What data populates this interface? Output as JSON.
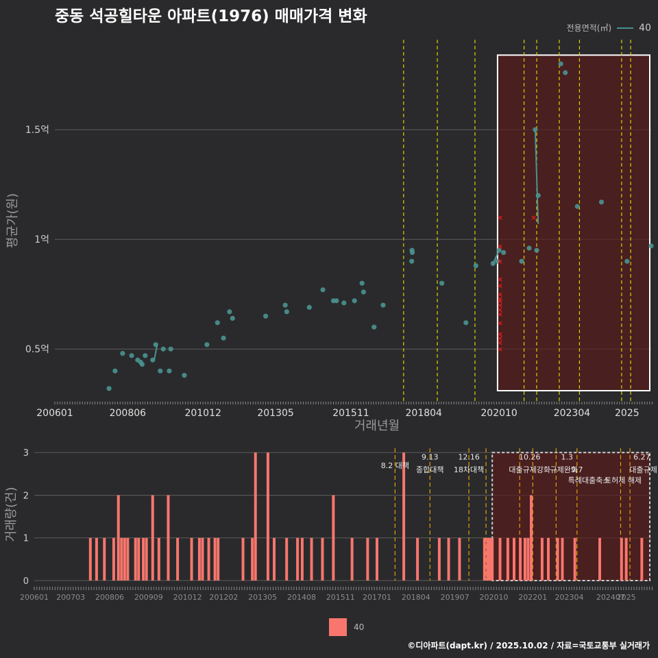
{
  "title": "중동 석공힐타운 아파트(1976) 매매가격 변화",
  "legend": {
    "title": "전용면적(㎡)",
    "entry": "40"
  },
  "credit": "©디아파트(dapt.kr) / 2025.10.02 / 자료=국토교통부 실거래가",
  "colors": {
    "background": "#2a2a2c",
    "price_point": "#4a9390",
    "cancel_mark": "#e01e1e",
    "volume_bar": "#f8766d",
    "policy_line": "#e0d000",
    "highlight": "#5a1a1a"
  },
  "chart_data": [
    {
      "type": "scatter",
      "name": "price",
      "xlabel": "거래년월",
      "ylabel": "평균가(원)",
      "x_tick_labels": [
        "200601",
        "200806",
        "201012",
        "201305",
        "201511",
        "201804",
        "202010",
        "202304",
        "2025"
      ],
      "x_ticks": [
        2006.0,
        2008.42,
        2010.92,
        2013.33,
        2015.83,
        2018.25,
        2020.75,
        2023.17,
        2025.0
      ],
      "xlim": [
        2006.0,
        2025.8
      ],
      "y_tick_labels": [
        "0.5억",
        "1억",
        "1.5억"
      ],
      "y_ticks": [
        0.5,
        1.0,
        1.5
      ],
      "ylim": [
        0.26,
        1.91
      ],
      "points_x": [
        2007.8,
        2008.0,
        2008.25,
        2008.55,
        2008.75,
        2008.85,
        2008.9,
        2009.0,
        2009.25,
        2009.35,
        2009.5,
        2009.6,
        2009.8,
        2009.85,
        2010.3,
        2011.05,
        2011.4,
        2011.6,
        2011.8,
        2011.9,
        2013.0,
        2013.65,
        2013.7,
        2014.45,
        2014.9,
        2015.25,
        2015.35,
        2015.6,
        2015.95,
        2016.2,
        2016.25,
        2016.6,
        2016.9,
        2017.85,
        2017.86,
        2017.87,
        2018.85,
        2019.65,
        2019.98,
        2020.55,
        2020.7,
        2020.75,
        2020.9,
        2021.5,
        2021.75,
        2021.95,
        2022.0,
        2022.05,
        2022.8,
        2022.95,
        2023.35,
        2024.15,
        2025.0,
        2025.8
      ],
      "points_y": [
        0.32,
        0.4,
        0.48,
        0.47,
        0.45,
        0.44,
        0.43,
        0.47,
        0.45,
        0.52,
        0.4,
        0.5,
        0.4,
        0.5,
        0.38,
        0.52,
        0.62,
        0.55,
        0.67,
        0.64,
        0.65,
        0.7,
        0.67,
        0.69,
        0.77,
        0.72,
        0.72,
        0.71,
        0.72,
        0.8,
        0.76,
        0.6,
        0.7,
        0.9,
        0.95,
        0.94,
        0.8,
        0.62,
        0.88,
        0.89,
        0.9,
        0.95,
        0.94,
        0.9,
        0.96,
        1.5,
        0.95,
        1.2,
        1.8,
        1.76,
        1.15,
        1.17,
        0.9,
        0.97
      ],
      "line_segments": [
        [
          2009.3,
          0.45,
          2009.4,
          0.52
        ],
        [
          2020.55,
          0.89,
          2020.75,
          0.95
        ],
        [
          2021.95,
          1.5,
          2022.05,
          1.07
        ]
      ],
      "cancel_marks_x": [
        2020.78,
        2020.78,
        2020.78,
        2020.78,
        2020.78,
        2020.78,
        2020.78,
        2020.78,
        2020.78,
        2020.78,
        2020.78,
        2020.78,
        2020.78,
        2020.78,
        2020.78,
        2020.78,
        2021.9
      ],
      "cancel_marks_y": [
        1.1,
        0.97,
        0.9,
        0.82,
        0.79,
        0.75,
        0.73,
        0.72,
        0.7,
        0.68,
        0.66,
        0.62,
        0.57,
        0.55,
        0.53,
        0.5,
        1.1
      ],
      "policy_lines_x": [
        2017.58,
        2018.7,
        2019.95,
        2021.58,
        2022.0,
        2022.75,
        2023.42,
        2024.82,
        2025.12
      ],
      "highlight_range_x": [
        2020.7,
        2025.8
      ],
      "highlight_range_y": [
        0.31,
        1.84
      ]
    },
    {
      "type": "bar",
      "name": "volume",
      "xlabel": "",
      "ylabel": "거래량(건)",
      "x_tick_labels": [
        "200601",
        "200703",
        "200806",
        "200909",
        "201012",
        "201202",
        "201305",
        "201408",
        "201511",
        "201701",
        "201804",
        "201907",
        "202010",
        "202201",
        "202304",
        "202407",
        "2025"
      ],
      "x_ticks": [
        2006.0,
        2007.17,
        2008.42,
        2009.67,
        2010.92,
        2012.08,
        2013.33,
        2014.58,
        2015.83,
        2017.0,
        2018.25,
        2019.5,
        2020.75,
        2022.0,
        2023.17,
        2024.5,
        2025.0
      ],
      "xlim": [
        2006.0,
        2025.8
      ],
      "y_tick_labels": [
        "0",
        "1",
        "2",
        "3"
      ],
      "y_ticks": [
        0,
        1,
        2,
        3
      ],
      "ylim": [
        0,
        3.1
      ],
      "bars_x": [
        2007.8,
        2008.0,
        2008.25,
        2008.55,
        2008.7,
        2008.8,
        2008.9,
        2009.0,
        2009.25,
        2009.35,
        2009.5,
        2009.6,
        2009.8,
        2010.0,
        2010.3,
        2010.6,
        2011.05,
        2011.3,
        2011.4,
        2011.6,
        2011.8,
        2011.9,
        2012.7,
        2013.0,
        2013.1,
        2013.5,
        2013.7,
        2014.1,
        2014.45,
        2014.6,
        2014.9,
        2015.25,
        2015.6,
        2016.2,
        2016.7,
        2017.0,
        2017.86,
        2018.3,
        2019.0,
        2019.3,
        2019.65,
        2020.45,
        2020.55,
        2020.62,
        2020.7,
        2020.95,
        2021.2,
        2021.4,
        2021.6,
        2021.75,
        2021.85,
        2021.95,
        2022.3,
        2022.5,
        2022.8,
        2022.95,
        2023.35,
        2024.15,
        2024.85,
        2025.0,
        2025.5
      ],
      "bars_v": [
        1,
        1,
        1,
        1,
        2,
        1,
        1,
        1,
        1,
        1,
        1,
        1,
        2,
        1,
        2,
        1,
        1,
        1,
        1,
        1,
        1,
        1,
        1,
        1,
        3,
        3,
        1,
        1,
        1,
        1,
        1,
        1,
        2,
        1,
        1,
        1,
        3,
        1,
        1,
        1,
        1,
        1,
        1,
        1,
        1,
        1,
        1,
        1,
        1,
        1,
        1,
        2,
        1,
        1,
        1,
        1,
        1,
        1,
        1,
        1,
        1
      ],
      "policy_lines_x": [
        2017.58,
        2018.7,
        2019.95,
        2020.5,
        2021.58,
        2022.0,
        2022.75,
        2023.42,
        2024.82,
        2025.12
      ],
      "highlight_range_x": [
        2020.7,
        2025.8
      ],
      "policy_labels": [
        {
          "x": 2017.58,
          "y": 2.7,
          "text": "8.2 대책"
        },
        {
          "x": 2018.7,
          "y": 2.9,
          "text": "9.13"
        },
        {
          "x": 2018.7,
          "y": 2.6,
          "text": "종합대책"
        },
        {
          "x": 2019.95,
          "y": 2.9,
          "text": "12.16"
        },
        {
          "x": 2019.95,
          "y": 2.6,
          "text": "18차대책"
        },
        {
          "x": 2021.9,
          "y": 2.9,
          "text": "10.26"
        },
        {
          "x": 2021.9,
          "y": 2.6,
          "text": "대출규제강화"
        },
        {
          "x": 2023.1,
          "y": 2.9,
          "text": "1.3"
        },
        {
          "x": 2023.0,
          "y": 2.6,
          "text": "규제완화"
        },
        {
          "x": 2023.42,
          "y": 2.6,
          "text": "9.7"
        },
        {
          "x": 2023.8,
          "y": 2.35,
          "text": "특례대출축소"
        },
        {
          "x": 2024.9,
          "y": 2.35,
          "text": "토허제 해제"
        },
        {
          "x": 2025.5,
          "y": 2.9,
          "text": "6.27"
        },
        {
          "x": 2025.55,
          "y": 2.6,
          "text": "대출규제"
        }
      ]
    }
  ]
}
